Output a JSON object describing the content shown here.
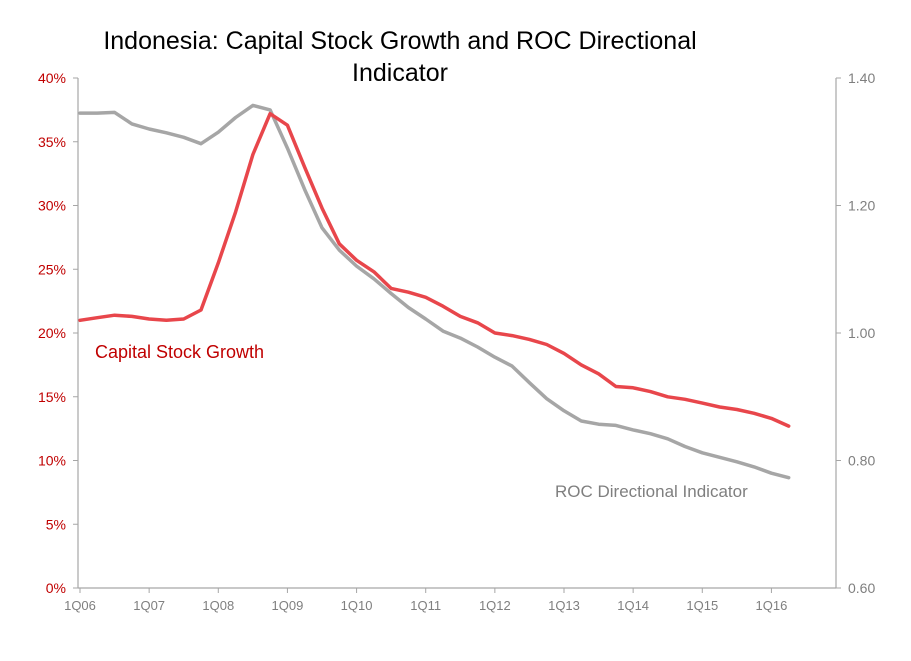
{
  "chart_data": {
    "type": "line",
    "title_lines": [
      "Indonesia: Capital Stock Growth and ROC Directional",
      "Indicator"
    ],
    "x_tick_labels": [
      "1Q06",
      "1Q07",
      "1Q08",
      "1Q09",
      "1Q10",
      "1Q11",
      "1Q12",
      "1Q13",
      "1Q14",
      "1Q15",
      "1Q16"
    ],
    "y_left": {
      "ticks": [
        "0%",
        "5%",
        "10%",
        "15%",
        "20%",
        "25%",
        "30%",
        "35%",
        "40%"
      ],
      "range": [
        0,
        40
      ]
    },
    "y_right": {
      "ticks": [
        "0.60",
        "0.80",
        "1.00",
        "1.20",
        "1.40"
      ],
      "range": [
        0.6,
        1.4
      ]
    },
    "grid": false,
    "series": [
      {
        "name": "Capital Stock Growth",
        "axis": "left",
        "color": "#e8464b",
        "x": [
          2006.0,
          2006.25,
          2006.5,
          2006.75,
          2007.0,
          2007.25,
          2007.5,
          2007.75,
          2008.0,
          2008.25,
          2008.5,
          2008.75,
          2009.0,
          2009.25,
          2009.5,
          2009.75,
          2010.0,
          2010.25,
          2010.5,
          2010.75,
          2011.0,
          2011.25,
          2011.5,
          2011.75,
          2012.0,
          2012.25,
          2012.5,
          2012.75,
          2013.0,
          2013.25,
          2013.5,
          2013.75,
          2014.0,
          2014.25,
          2014.5,
          2014.75,
          2015.0,
          2015.25,
          2015.5,
          2015.75,
          2016.0,
          2016.25
        ],
        "values": [
          21.0,
          21.2,
          21.4,
          21.3,
          21.1,
          21.0,
          21.1,
          21.8,
          25.5,
          29.5,
          34.0,
          37.2,
          36.3,
          33.0,
          29.8,
          27.0,
          25.7,
          24.8,
          23.5,
          23.2,
          22.8,
          22.1,
          21.3,
          20.8,
          20.0,
          19.8,
          19.5,
          19.1,
          18.4,
          17.5,
          16.8,
          15.8,
          15.7,
          15.4,
          15.0,
          14.8,
          14.5,
          14.2,
          14.0,
          13.7,
          13.3,
          12.7
        ]
      },
      {
        "name": "ROC Directional Indicator",
        "axis": "right",
        "color": "#a6a6a6",
        "x": [
          2006.0,
          2006.25,
          2006.5,
          2006.75,
          2007.0,
          2007.25,
          2007.5,
          2007.75,
          2008.0,
          2008.25,
          2008.5,
          2008.75,
          2009.0,
          2009.25,
          2009.5,
          2009.75,
          2010.0,
          2010.25,
          2010.5,
          2010.75,
          2011.0,
          2011.25,
          2011.5,
          2011.75,
          2012.0,
          2012.25,
          2012.5,
          2012.75,
          2013.0,
          2013.25,
          2013.5,
          2013.75,
          2014.0,
          2014.25,
          2014.5,
          2014.75,
          2015.0,
          2015.25,
          2015.5,
          2015.75,
          2016.0,
          2016.25
        ],
        "values": [
          1.345,
          1.345,
          1.346,
          1.328,
          1.32,
          1.314,
          1.307,
          1.297,
          1.315,
          1.338,
          1.357,
          1.35,
          1.29,
          1.225,
          1.165,
          1.13,
          1.105,
          1.085,
          1.062,
          1.04,
          1.022,
          1.003,
          0.992,
          0.978,
          0.962,
          0.948,
          0.922,
          0.897,
          0.878,
          0.862,
          0.857,
          0.855,
          0.848,
          0.842,
          0.834,
          0.822,
          0.812,
          0.805,
          0.798,
          0.79,
          0.78,
          0.773
        ]
      }
    ],
    "annotations": [
      {
        "text": "Capital Stock Growth",
        "color": "#c00000"
      },
      {
        "text": "ROC Directional Indicator",
        "color": "#7f7f7f"
      }
    ],
    "colors": {
      "left_axis_text": "#c00000",
      "right_axis_text": "#7f7f7f",
      "axis_line": "#a6a6a6"
    }
  }
}
